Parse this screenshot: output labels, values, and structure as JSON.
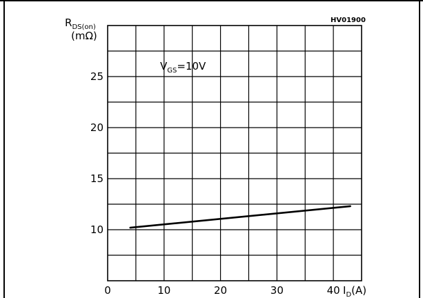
{
  "chart_data": {
    "type": "line",
    "reference_code": "HV01900",
    "ylabel": {
      "main": "R",
      "sub": "DS(on)",
      "unit": "(mΩ)"
    },
    "xlabel": {
      "main": "I",
      "sub": "D",
      "unit": "(A)"
    },
    "condition": {
      "main": "V",
      "sub": "GS",
      "value": "=10V"
    },
    "xlim": [
      0,
      45
    ],
    "ylim": [
      5,
      30
    ],
    "grid": true,
    "x_ticks": [
      {
        "value": 0,
        "label": "0"
      },
      {
        "value": 10,
        "label": "10"
      },
      {
        "value": 20,
        "label": "20"
      },
      {
        "value": 30,
        "label": "30"
      },
      {
        "value": 40,
        "label": "40"
      }
    ],
    "y_ticks": [
      {
        "value": 10,
        "label": "10"
      },
      {
        "value": 15,
        "label": "15"
      },
      {
        "value": 20,
        "label": "20"
      },
      {
        "value": 25,
        "label": "25"
      }
    ],
    "series": [
      {
        "x": [
          4,
          43
        ],
        "y": [
          10.2,
          12.3
        ]
      }
    ]
  }
}
